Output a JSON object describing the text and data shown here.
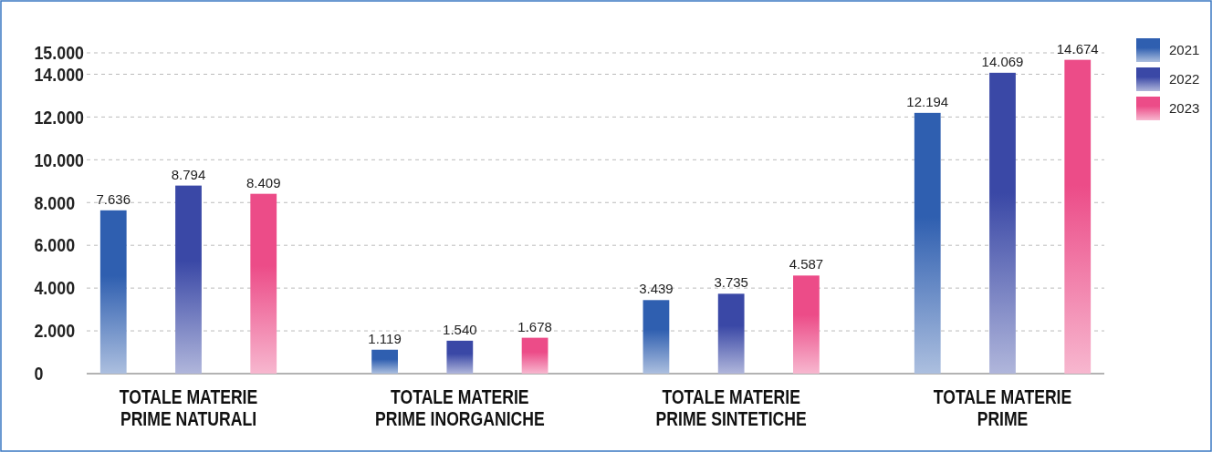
{
  "chart_data": {
    "type": "bar",
    "categories": [
      "TOTALE MATERIE PRIME NATURALI",
      "TOTALE MATERIE PRIME INORGANICHE",
      "TOTALE MATERIE PRIME SINTETICHE",
      "TOTALE MATERIE PRIME"
    ],
    "series": [
      {
        "name": "2021",
        "color": "#2f5fb0",
        "values": [
          7636,
          1119,
          3439,
          12194
        ],
        "value_labels": [
          "7.636",
          "1.119",
          "3.439",
          "12.194"
        ]
      },
      {
        "name": "2022",
        "color": "#3a48a6",
        "values": [
          8794,
          1540,
          3735,
          14069
        ],
        "value_labels": [
          "8.794",
          "1.540",
          "3.735",
          "14.069"
        ]
      },
      {
        "name": "2023",
        "color": "#ec4c88",
        "values": [
          8409,
          1678,
          4587,
          14674
        ],
        "value_labels": [
          "8.409",
          "1.678",
          "4.587",
          "14.674"
        ]
      }
    ],
    "ylim": [
      0,
      15000
    ],
    "yticks": [
      {
        "value": 0,
        "label": "0"
      },
      {
        "value": 2000,
        "label": "2.000"
      },
      {
        "value": 4000,
        "label": "4.000"
      },
      {
        "value": 6000,
        "label": "6.000"
      },
      {
        "value": 8000,
        "label": "8.000"
      },
      {
        "value": 10000,
        "label": "10.000"
      },
      {
        "value": 12000,
        "label": "12.000"
      },
      {
        "value": 14000,
        "label": "14.000"
      },
      {
        "value": 15000,
        "label": "15.000"
      }
    ],
    "grid": "y",
    "legend": "top right"
  }
}
